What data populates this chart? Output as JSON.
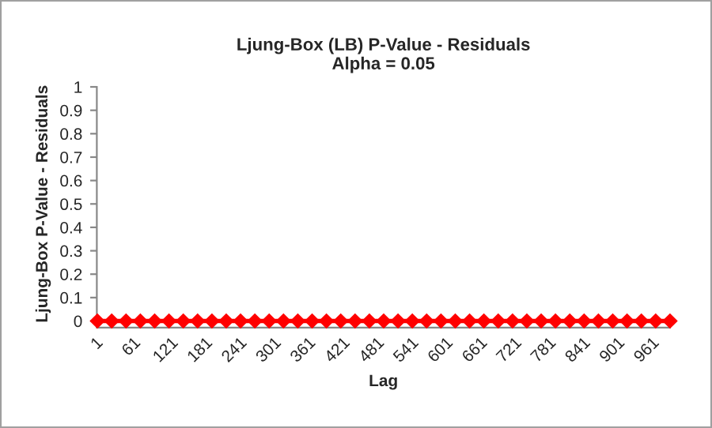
{
  "chart_data": {
    "type": "line",
    "title": "Ljung-Box (LB) P-Value - Residuals\nAlpha = 0.05",
    "xlabel": "Lag",
    "ylabel": "Ljung-Box P-Value - Residuals",
    "x": [
      1,
      26,
      51,
      76,
      101,
      126,
      151,
      176,
      201,
      226,
      251,
      276,
      301,
      326,
      351,
      376,
      401,
      426,
      451,
      476,
      501,
      526,
      551,
      576,
      601,
      626,
      651,
      676,
      701,
      726,
      751,
      776,
      801,
      826,
      851,
      876,
      901,
      926,
      951,
      976,
      1001
    ],
    "series": [
      {
        "color": "#ff0000",
        "values": [
          0,
          0,
          0,
          0,
          0,
          0,
          0,
          0,
          0,
          0,
          0,
          0,
          0,
          0,
          0,
          0,
          0,
          0,
          0,
          0,
          0,
          0,
          0,
          0,
          0,
          0,
          0,
          0,
          0,
          0,
          0,
          0,
          0,
          0,
          0,
          0,
          0,
          0,
          0,
          0,
          0
        ]
      }
    ],
    "xlim": [
      0,
      1001
    ],
    "xticks": [
      1,
      61,
      121,
      181,
      241,
      301,
      361,
      421,
      481,
      541,
      601,
      661,
      721,
      781,
      841,
      901,
      961
    ],
    "ylim": [
      0,
      1
    ],
    "yticks": [
      0,
      0.1,
      0.2,
      0.3,
      0.4,
      0.5,
      0.6,
      0.7,
      0.8,
      0.9,
      1
    ],
    "marker": "diamond",
    "line_style": "solid",
    "grid": false,
    "legend": false
  }
}
